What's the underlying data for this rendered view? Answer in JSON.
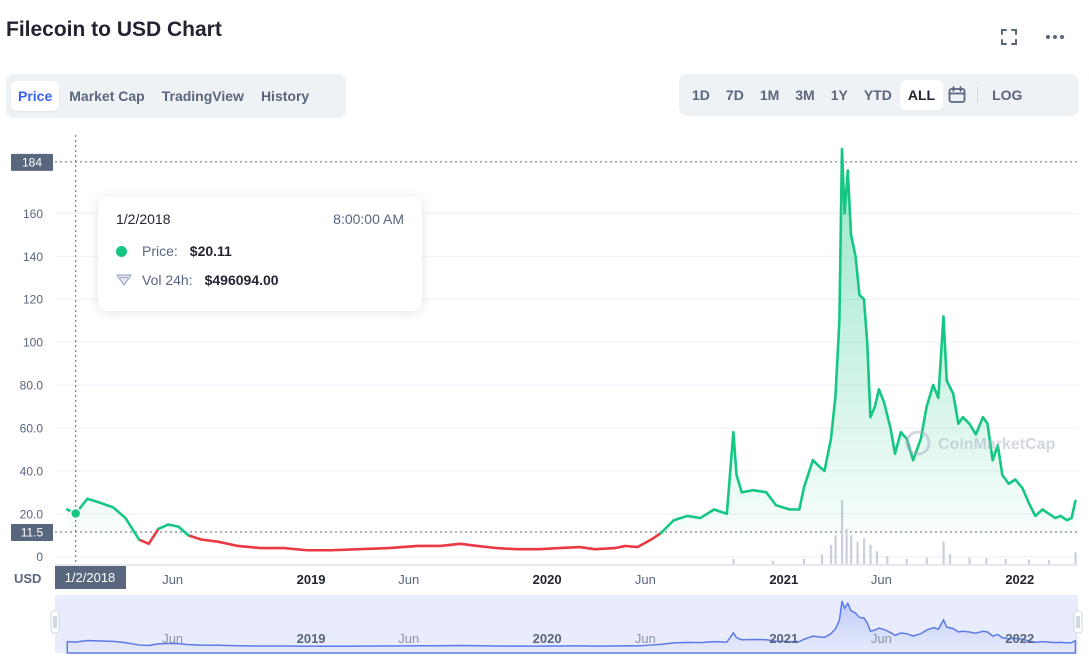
{
  "page": {
    "title": "Filecoin to USD Chart",
    "fullscreen_icon": "fullscreen-icon",
    "more_icon": "more-icon"
  },
  "tabs": [
    "Price",
    "Market Cap",
    "TradingView",
    "History"
  ],
  "active_tab": "Price",
  "ranges": [
    "1D",
    "7D",
    "1M",
    "3M",
    "1Y",
    "YTD",
    "ALL"
  ],
  "active_range": "ALL",
  "calendar_icon": "calendar-icon",
  "log_label": "LOG",
  "tooltip": {
    "date": "1/2/2018",
    "time": "8:00:00 AM",
    "price_label": "Price:",
    "price_value": "$20.11",
    "vol_label": "Vol 24h:",
    "vol_value": "$496094.00"
  },
  "watermark": "CoinMarketCap",
  "colors": {
    "up": "#16c784",
    "down": "#ea3943",
    "accent": "#3861fb",
    "nav": "#5a7be8"
  },
  "chart_data": {
    "type": "line",
    "ylabel": "USD",
    "y_ticks": [
      "184",
      "160",
      "140",
      "120",
      "100",
      "80.0",
      "60.0",
      "40.0",
      "20.0",
      "11.5",
      "0"
    ],
    "y_tick_values": [
      184,
      160,
      140,
      120,
      100,
      80,
      60,
      40,
      20,
      11.5,
      0
    ],
    "ylim": [
      0,
      184
    ],
    "reference_lines": [
      {
        "label": "184",
        "value": 184
      },
      {
        "label": "11.5",
        "value": 11.5
      }
    ],
    "x_ticks": [
      "Jun",
      "2019",
      "Jun",
      "2020",
      "Jun",
      "2021",
      "Jun",
      "2022"
    ],
    "x_tick_dates": [
      "2018-06",
      "2019-01",
      "2019-06",
      "2020-01",
      "2020-06",
      "2021-01",
      "2021-06",
      "2022-01"
    ],
    "x_highlight": "1/2/2018",
    "baseline": 11.5,
    "grid": true,
    "series": [
      {
        "values": [
          [
            "2017-12-20",
            22
          ],
          [
            "2018-01-02",
            20.1
          ],
          [
            "2018-01-20",
            27
          ],
          [
            "2018-02-10",
            25
          ],
          [
            "2018-03-01",
            23
          ],
          [
            "2018-03-20",
            18
          ],
          [
            "2018-04-10",
            8
          ],
          [
            "2018-04-25",
            6
          ],
          [
            "2018-05-10",
            13
          ],
          [
            "2018-05-25",
            15
          ],
          [
            "2018-06-10",
            14
          ],
          [
            "2018-06-25",
            10
          ],
          [
            "2018-07-15",
            8
          ],
          [
            "2018-08-10",
            7
          ],
          [
            "2018-09-10",
            5
          ],
          [
            "2018-10-15",
            4
          ],
          [
            "2018-11-20",
            4
          ],
          [
            "2018-12-25",
            3
          ],
          [
            "2019-02-01",
            3
          ],
          [
            "2019-03-15",
            3.5
          ],
          [
            "2019-05-01",
            4
          ],
          [
            "2019-06-15",
            5
          ],
          [
            "2019-07-20",
            5
          ],
          [
            "2019-08-20",
            6
          ],
          [
            "2019-09-15",
            5
          ],
          [
            "2019-10-15",
            4
          ],
          [
            "2019-11-15",
            3.5
          ],
          [
            "2019-12-20",
            3.5
          ],
          [
            "2020-01-20",
            4
          ],
          [
            "2020-02-20",
            4.5
          ],
          [
            "2020-03-15",
            3.5
          ],
          [
            "2020-04-15",
            4
          ],
          [
            "2020-05-01",
            5
          ],
          [
            "2020-05-20",
            4.5
          ],
          [
            "2020-06-10",
            8
          ],
          [
            "2020-06-25",
            11
          ],
          [
            "2020-07-15",
            17
          ],
          [
            "2020-08-05",
            19
          ],
          [
            "2020-08-25",
            18
          ],
          [
            "2020-09-15",
            22
          ],
          [
            "2020-10-05",
            20
          ],
          [
            "2020-10-15",
            58
          ],
          [
            "2020-10-20",
            38
          ],
          [
            "2020-10-28",
            30
          ],
          [
            "2020-11-15",
            31
          ],
          [
            "2020-12-05",
            30
          ],
          [
            "2020-12-20",
            24
          ],
          [
            "2021-01-10",
            22
          ],
          [
            "2021-01-25",
            22
          ],
          [
            "2021-02-01",
            32
          ],
          [
            "2021-02-15",
            45
          ],
          [
            "2021-02-25",
            42
          ],
          [
            "2021-03-05",
            40
          ],
          [
            "2021-03-15",
            55
          ],
          [
            "2021-03-22",
            75
          ],
          [
            "2021-03-28",
            110
          ],
          [
            "2021-04-01",
            190
          ],
          [
            "2021-04-05",
            160
          ],
          [
            "2021-04-10",
            180
          ],
          [
            "2021-04-15",
            150
          ],
          [
            "2021-04-22",
            140
          ],
          [
            "2021-04-28",
            122
          ],
          [
            "2021-05-05",
            120
          ],
          [
            "2021-05-10",
            100
          ],
          [
            "2021-05-15",
            65
          ],
          [
            "2021-05-22",
            70
          ],
          [
            "2021-05-28",
            78
          ],
          [
            "2021-06-05",
            72
          ],
          [
            "2021-06-15",
            60
          ],
          [
            "2021-06-22",
            48
          ],
          [
            "2021-07-01",
            58
          ],
          [
            "2021-07-10",
            55
          ],
          [
            "2021-07-20",
            45
          ],
          [
            "2021-08-01",
            55
          ],
          [
            "2021-08-10",
            70
          ],
          [
            "2021-08-20",
            80
          ],
          [
            "2021-08-28",
            74
          ],
          [
            "2021-09-05",
            112
          ],
          [
            "2021-09-10",
            82
          ],
          [
            "2021-09-20",
            76
          ],
          [
            "2021-09-28",
            62
          ],
          [
            "2021-10-05",
            65
          ],
          [
            "2021-10-15",
            62
          ],
          [
            "2021-10-25",
            57
          ],
          [
            "2021-11-05",
            65
          ],
          [
            "2021-11-12",
            62
          ],
          [
            "2021-11-20",
            45
          ],
          [
            "2021-11-28",
            52
          ],
          [
            "2021-12-05",
            38
          ],
          [
            "2021-12-15",
            34
          ],
          [
            "2021-12-25",
            36
          ],
          [
            "2022-01-05",
            32
          ],
          [
            "2022-01-15",
            25
          ],
          [
            "2022-01-25",
            19
          ],
          [
            "2022-02-05",
            22
          ],
          [
            "2022-02-15",
            20
          ],
          [
            "2022-02-25",
            18
          ],
          [
            "2022-03-05",
            19
          ],
          [
            "2022-03-15",
            17
          ],
          [
            "2022-03-22",
            18
          ],
          [
            "2022-03-28",
            26
          ]
        ]
      }
    ],
    "volume": [
      [
        "2020-10-15",
        0.08
      ],
      [
        "2020-12-15",
        0.05
      ],
      [
        "2021-02-01",
        0.08
      ],
      [
        "2021-03-01",
        0.15
      ],
      [
        "2021-03-15",
        0.3
      ],
      [
        "2021-03-22",
        0.45
      ],
      [
        "2021-04-01",
        1.0
      ],
      [
        "2021-04-08",
        0.55
      ],
      [
        "2021-04-15",
        0.45
      ],
      [
        "2021-04-25",
        0.35
      ],
      [
        "2021-05-05",
        0.4
      ],
      [
        "2021-05-15",
        0.3
      ],
      [
        "2021-05-25",
        0.2
      ],
      [
        "2021-06-10",
        0.12
      ],
      [
        "2021-07-10",
        0.08
      ],
      [
        "2021-08-10",
        0.1
      ],
      [
        "2021-09-05",
        0.35
      ],
      [
        "2021-09-15",
        0.15
      ],
      [
        "2021-10-15",
        0.1
      ],
      [
        "2021-11-10",
        0.09
      ],
      [
        "2021-12-10",
        0.08
      ],
      [
        "2022-01-15",
        0.07
      ],
      [
        "2022-02-15",
        0.06
      ],
      [
        "2022-03-28",
        0.18
      ]
    ]
  }
}
